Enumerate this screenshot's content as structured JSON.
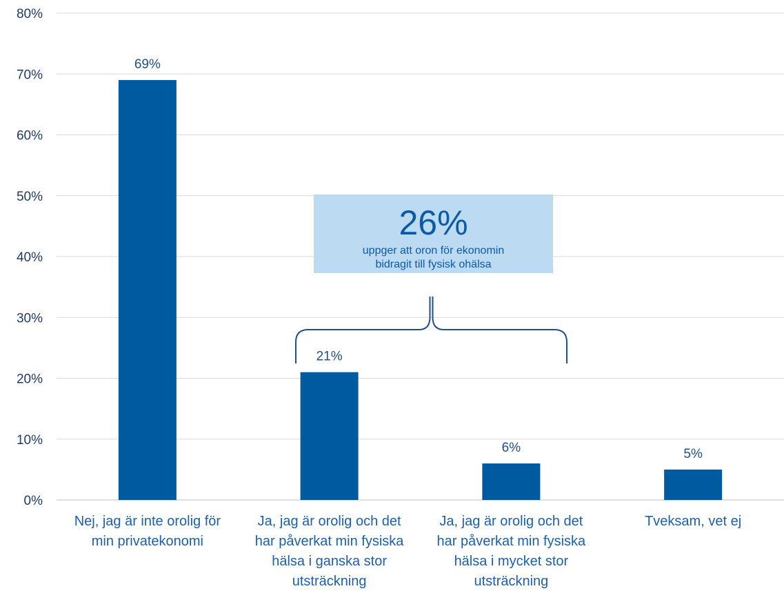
{
  "chart_data": {
    "type": "bar",
    "categories": [
      [
        "Nej, jag är inte orolig för",
        "min privatekonomi"
      ],
      [
        "Ja, jag är orolig och det",
        "har påverkat min fysiska",
        "hälsa i ganska stor",
        "utsträckning"
      ],
      [
        "Ja, jag är orolig och det",
        "har påverkat min fysiska",
        "hälsa i mycket stor",
        "utsträckning"
      ],
      [
        "Tveksam, vet ej"
      ]
    ],
    "values": [
      69,
      21,
      6,
      5
    ],
    "value_labels": [
      "69%",
      "21%",
      "6%",
      "5%"
    ],
    "ylim": [
      0,
      80
    ],
    "yticks": [
      0,
      10,
      20,
      30,
      40,
      50,
      60,
      70,
      80
    ],
    "ytick_labels": [
      "0%",
      "10%",
      "20%",
      "30%",
      "40%",
      "50%",
      "60%",
      "70%",
      "80%"
    ],
    "grid": true,
    "bar_color": "#005aa0",
    "annotation": {
      "value": "26%",
      "text_lines": [
        "uppger att oron för ekonomin",
        "bidragit till fysisk ohälsa"
      ],
      "box_color": "#bcdaf2",
      "brace_spans_categories": [
        1,
        2
      ]
    }
  }
}
